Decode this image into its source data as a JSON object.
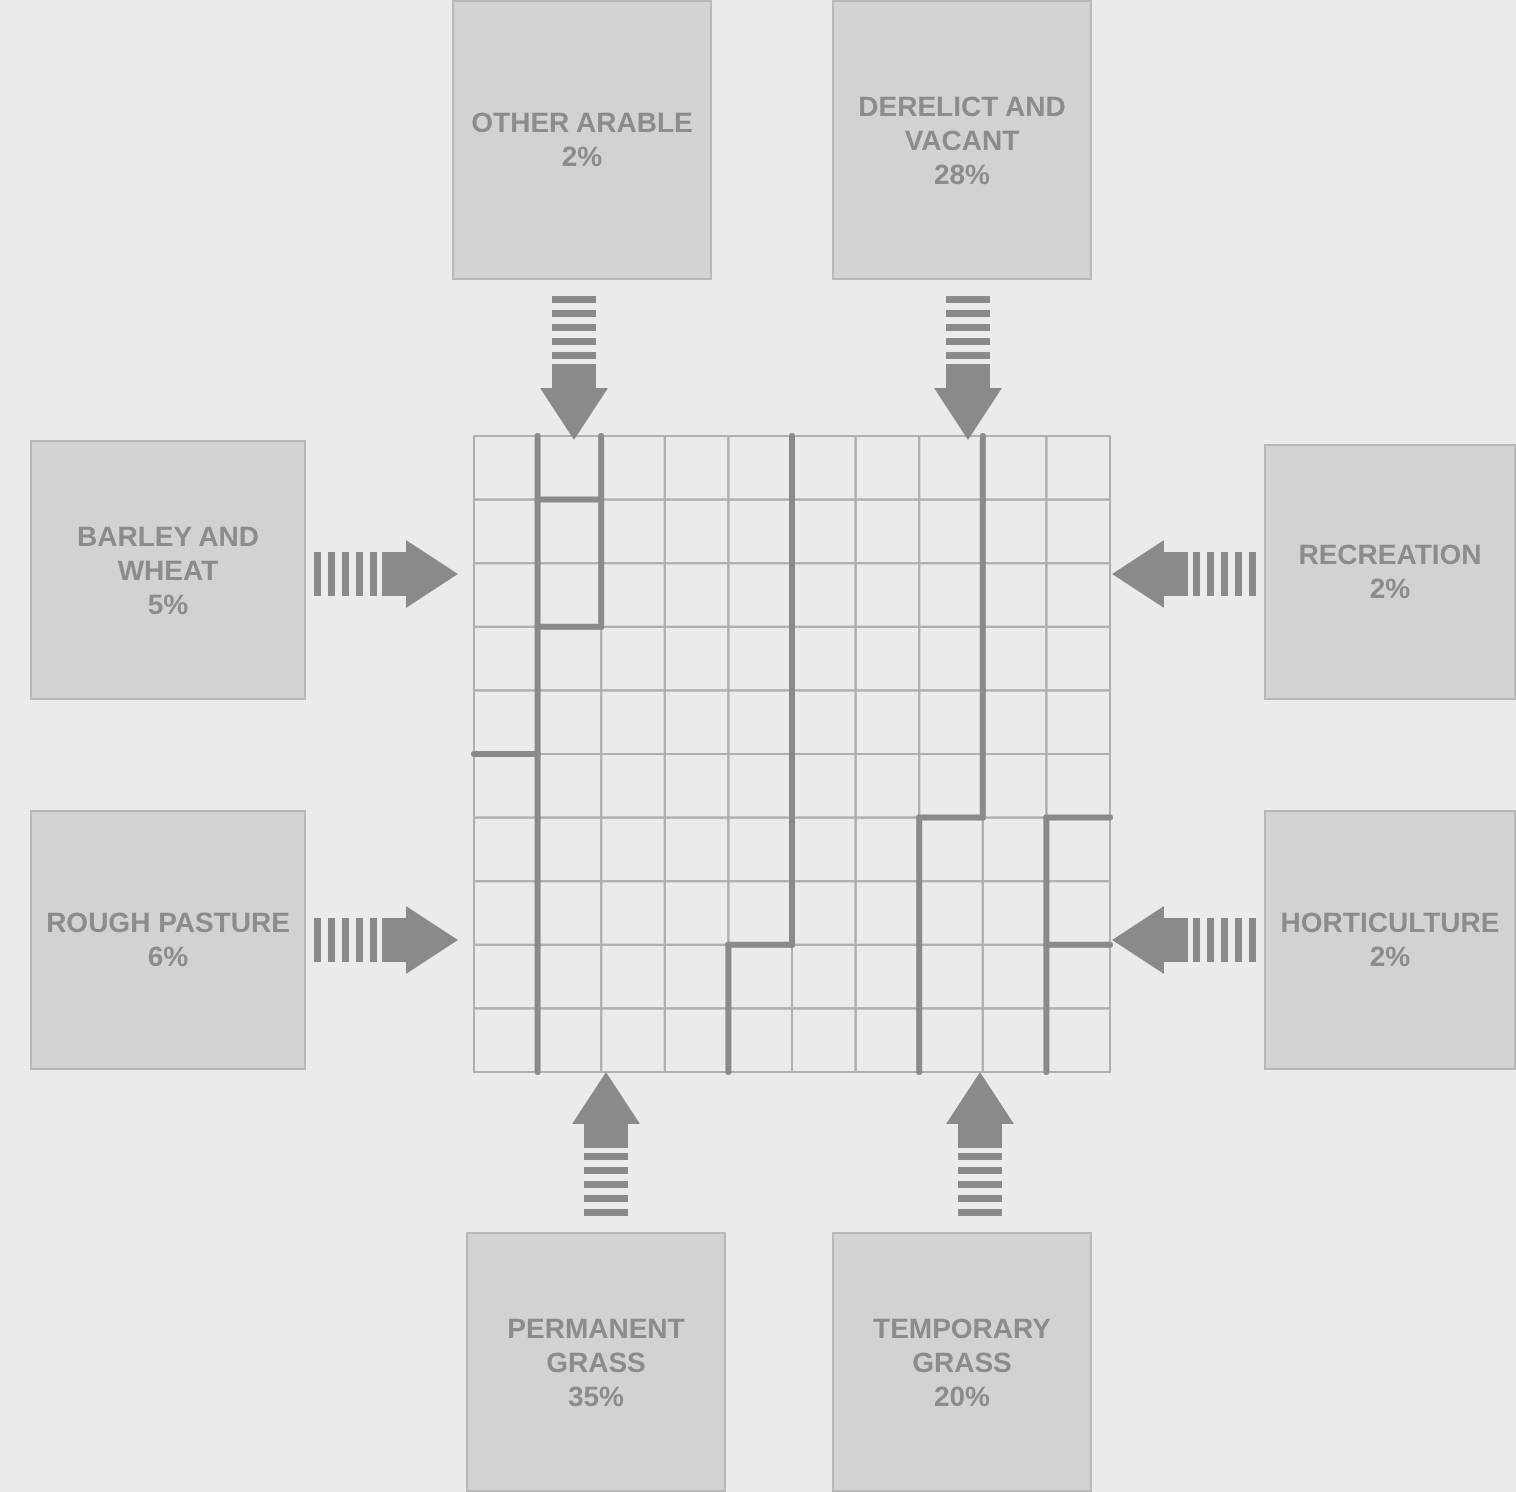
{
  "chart_data": {
    "type": "other",
    "categories": [
      "OTHER ARABLE",
      "DERELICT AND VACANT",
      "BARLEY AND WHEAT",
      "RECREATION",
      "ROUGH PASTURE",
      "HORTICULTURE",
      "PERMANENT GRASS",
      "TEMPORARY GRASS"
    ],
    "values": [
      2,
      28,
      5,
      2,
      6,
      2,
      35,
      20
    ],
    "value_labels": [
      "2%",
      "28%",
      "5%",
      "2%",
      "6%",
      "2%",
      "35%",
      "20%"
    ]
  }
}
